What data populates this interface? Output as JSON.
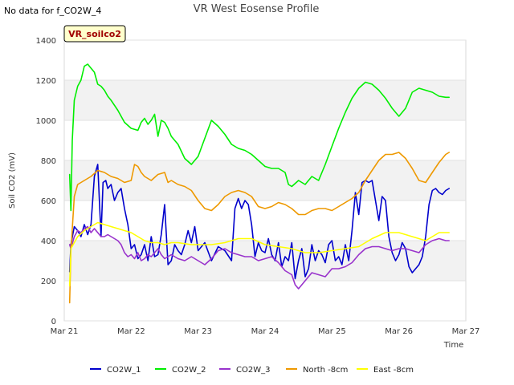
{
  "header": {
    "title": "VR West Eosense Profile",
    "no_data_note": "No data for f_CO2W_4",
    "site_badge": "VR_soilco2"
  },
  "chart_data": {
    "type": "line",
    "title": "VR West Eosense Profile",
    "xlabel": "Time",
    "ylabel": "Soil CO2 (mV)",
    "xlim": [
      21.0,
      27.0
    ],
    "ylim": [
      0,
      1400
    ],
    "x_tick_values": [
      21,
      22,
      23,
      24,
      25,
      26,
      27
    ],
    "x_tick_labels": [
      "Mar 21",
      "Mar 22",
      "Mar 23",
      "Mar 24",
      "Mar 25",
      "Mar 26",
      "Mar 27"
    ],
    "y_ticks": [
      0,
      200,
      400,
      600,
      800,
      1000,
      1200,
      1400
    ],
    "grid": true,
    "legend_position": "bottom",
    "series": [
      {
        "name": "CO2W_1",
        "color": "#0000cc",
        "x": [
          21.08,
          21.1,
          21.15,
          21.2,
          21.25,
          21.3,
          21.35,
          21.4,
          21.45,
          21.5,
          21.55,
          21.58,
          21.62,
          21.65,
          21.7,
          21.75,
          21.8,
          21.85,
          21.9,
          21.95,
          22.0,
          22.05,
          22.1,
          22.15,
          22.2,
          22.25,
          22.3,
          22.35,
          22.4,
          22.45,
          22.5,
          22.55,
          22.6,
          22.65,
          22.7,
          22.75,
          22.8,
          22.85,
          22.9,
          22.95,
          23.0,
          23.1,
          23.2,
          23.3,
          23.4,
          23.5,
          23.55,
          23.6,
          23.65,
          23.7,
          23.75,
          23.8,
          23.85,
          23.9,
          23.95,
          24.0,
          24.05,
          24.1,
          24.15,
          24.2,
          24.25,
          24.3,
          24.35,
          24.4,
          24.45,
          24.5,
          24.55,
          24.6,
          24.65,
          24.7,
          24.75,
          24.8,
          24.85,
          24.9,
          24.95,
          25.0,
          25.05,
          25.1,
          25.15,
          25.2,
          25.25,
          25.3,
          25.35,
          25.4,
          25.45,
          25.5,
          25.55,
          25.6,
          25.65,
          25.7,
          25.75,
          25.8,
          25.85,
          25.9,
          25.95,
          26.0,
          26.05,
          26.1,
          26.15,
          26.2,
          26.25,
          26.3,
          26.35,
          26.4,
          26.45,
          26.5,
          26.55,
          26.6,
          26.65,
          26.7,
          26.75
        ],
        "values": [
          245,
          380,
          470,
          450,
          420,
          480,
          430,
          480,
          720,
          780,
          420,
          690,
          700,
          660,
          680,
          600,
          640,
          660,
          560,
          480,
          360,
          380,
          310,
          330,
          380,
          300,
          420,
          320,
          330,
          430,
          580,
          280,
          300,
          380,
          350,
          330,
          380,
          450,
          390,
          470,
          350,
          390,
          300,
          370,
          350,
          300,
          560,
          610,
          560,
          600,
          580,
          480,
          320,
          390,
          350,
          340,
          410,
          330,
          300,
          390,
          270,
          320,
          300,
          390,
          210,
          300,
          360,
          220,
          260,
          380,
          300,
          350,
          330,
          290,
          380,
          400,
          300,
          320,
          280,
          380,
          300,
          450,
          640,
          530,
          690,
          700,
          690,
          700,
          600,
          500,
          620,
          600,
          420,
          340,
          300,
          330,
          390,
          360,
          270,
          240,
          260,
          280,
          320,
          420,
          580,
          650,
          660,
          640,
          630,
          650,
          660
        ]
      },
      {
        "name": "CO2W_2",
        "color": "#00ee00",
        "x": [
          21.08,
          21.1,
          21.12,
          21.15,
          21.2,
          21.25,
          21.3,
          21.35,
          21.4,
          21.45,
          21.5,
          21.55,
          21.6,
          21.65,
          21.7,
          21.8,
          21.9,
          22.0,
          22.1,
          22.15,
          22.2,
          22.25,
          22.3,
          22.35,
          22.4,
          22.45,
          22.5,
          22.55,
          22.6,
          22.7,
          22.8,
          22.9,
          23.0,
          23.1,
          23.2,
          23.3,
          23.4,
          23.5,
          23.6,
          23.7,
          23.8,
          23.9,
          24.0,
          24.1,
          24.2,
          24.3,
          24.35,
          24.4,
          24.5,
          24.6,
          24.7,
          24.8,
          24.9,
          25.0,
          25.1,
          25.2,
          25.3,
          25.4,
          25.5,
          25.6,
          25.7,
          25.8,
          25.9,
          26.0,
          26.1,
          26.2,
          26.3,
          26.4,
          26.5,
          26.6,
          26.7,
          26.75
        ],
        "values": [
          730,
          550,
          900,
          1100,
          1170,
          1200,
          1270,
          1280,
          1260,
          1240,
          1180,
          1170,
          1150,
          1120,
          1100,
          1050,
          990,
          960,
          950,
          990,
          1010,
          980,
          1000,
          1030,
          920,
          1000,
          990,
          960,
          920,
          880,
          810,
          780,
          820,
          910,
          1000,
          970,
          930,
          880,
          860,
          850,
          830,
          800,
          770,
          760,
          760,
          740,
          680,
          670,
          700,
          680,
          720,
          700,
          780,
          870,
          960,
          1040,
          1110,
          1160,
          1190,
          1180,
          1150,
          1110,
          1060,
          1020,
          1060,
          1140,
          1160,
          1150,
          1140,
          1120,
          1115,
          1115
        ]
      },
      {
        "name": "CO2W_3",
        "color": "#9933cc",
        "x": [
          21.08,
          21.1,
          21.15,
          21.2,
          21.25,
          21.3,
          21.35,
          21.4,
          21.45,
          21.5,
          21.55,
          21.6,
          21.65,
          21.7,
          21.75,
          21.8,
          21.85,
          21.9,
          21.95,
          22.0,
          22.05,
          22.1,
          22.15,
          22.2,
          22.25,
          22.3,
          22.35,
          22.4,
          22.45,
          22.5,
          22.6,
          22.7,
          22.8,
          22.9,
          23.0,
          23.1,
          23.2,
          23.3,
          23.4,
          23.5,
          23.6,
          23.7,
          23.8,
          23.9,
          24.0,
          24.1,
          24.2,
          24.3,
          24.35,
          24.4,
          24.45,
          24.5,
          24.6,
          24.7,
          24.8,
          24.9,
          25.0,
          25.1,
          25.2,
          25.3,
          25.4,
          25.5,
          25.6,
          25.7,
          25.8,
          25.9,
          26.0,
          26.1,
          26.2,
          26.3,
          26.4,
          26.5,
          26.6,
          26.7,
          26.75
        ],
        "values": [
          380,
          360,
          420,
          450,
          440,
          460,
          470,
          440,
          460,
          440,
          420,
          420,
          430,
          420,
          410,
          400,
          380,
          340,
          320,
          330,
          310,
          340,
          300,
          310,
          330,
          320,
          340,
          360,
          330,
          310,
          330,
          310,
          300,
          320,
          300,
          280,
          310,
          350,
          360,
          340,
          330,
          320,
          320,
          300,
          310,
          320,
          290,
          250,
          240,
          230,
          180,
          160,
          200,
          240,
          230,
          220,
          260,
          260,
          270,
          290,
          330,
          360,
          370,
          370,
          360,
          350,
          360,
          360,
          350,
          340,
          380,
          400,
          410,
          400,
          400
        ]
      },
      {
        "name": "North -8cm",
        "color": "#ee9900",
        "x": [
          21.08,
          21.1,
          21.15,
          21.2,
          21.3,
          21.4,
          21.5,
          21.6,
          21.7,
          21.8,
          21.9,
          22.0,
          22.05,
          22.1,
          22.15,
          22.2,
          22.3,
          22.4,
          22.5,
          22.55,
          22.6,
          22.7,
          22.8,
          22.9,
          23.0,
          23.1,
          23.2,
          23.3,
          23.4,
          23.5,
          23.6,
          23.7,
          23.8,
          23.9,
          24.0,
          24.1,
          24.2,
          24.3,
          24.4,
          24.5,
          24.6,
          24.7,
          24.8,
          24.9,
          25.0,
          25.1,
          25.2,
          25.3,
          25.4,
          25.5,
          25.6,
          25.7,
          25.8,
          25.9,
          26.0,
          26.1,
          26.2,
          26.3,
          26.4,
          26.5,
          26.6,
          26.7,
          26.75
        ],
        "values": [
          90,
          350,
          620,
          680,
          700,
          720,
          750,
          740,
          720,
          710,
          690,
          700,
          780,
          770,
          740,
          720,
          700,
          730,
          740,
          690,
          700,
          680,
          670,
          650,
          600,
          560,
          550,
          580,
          620,
          640,
          650,
          640,
          620,
          570,
          560,
          570,
          590,
          580,
          560,
          530,
          530,
          550,
          560,
          560,
          550,
          570,
          590,
          610,
          640,
          700,
          750,
          800,
          830,
          830,
          840,
          810,
          760,
          700,
          690,
          740,
          790,
          830,
          840
        ]
      },
      {
        "name": "East -8cm",
        "color": "#ffff00",
        "x": [
          21.08,
          21.1,
          21.2,
          21.3,
          21.4,
          21.5,
          21.6,
          21.7,
          21.8,
          21.9,
          22.0,
          22.1,
          22.2,
          22.3,
          22.4,
          22.5,
          22.6,
          22.7,
          22.8,
          22.9,
          23.0,
          23.2,
          23.4,
          23.6,
          23.8,
          24.0,
          24.2,
          24.4,
          24.6,
          24.8,
          25.0,
          25.2,
          25.4,
          25.6,
          25.8,
          26.0,
          26.2,
          26.4,
          26.6,
          26.75
        ],
        "values": [
          175,
          360,
          420,
          450,
          470,
          490,
          480,
          470,
          460,
          450,
          440,
          420,
          400,
          390,
          390,
          380,
          390,
          390,
          385,
          380,
          380,
          380,
          390,
          410,
          410,
          380,
          370,
          360,
          340,
          340,
          350,
          360,
          370,
          410,
          440,
          440,
          420,
          400,
          440,
          440
        ]
      }
    ]
  }
}
